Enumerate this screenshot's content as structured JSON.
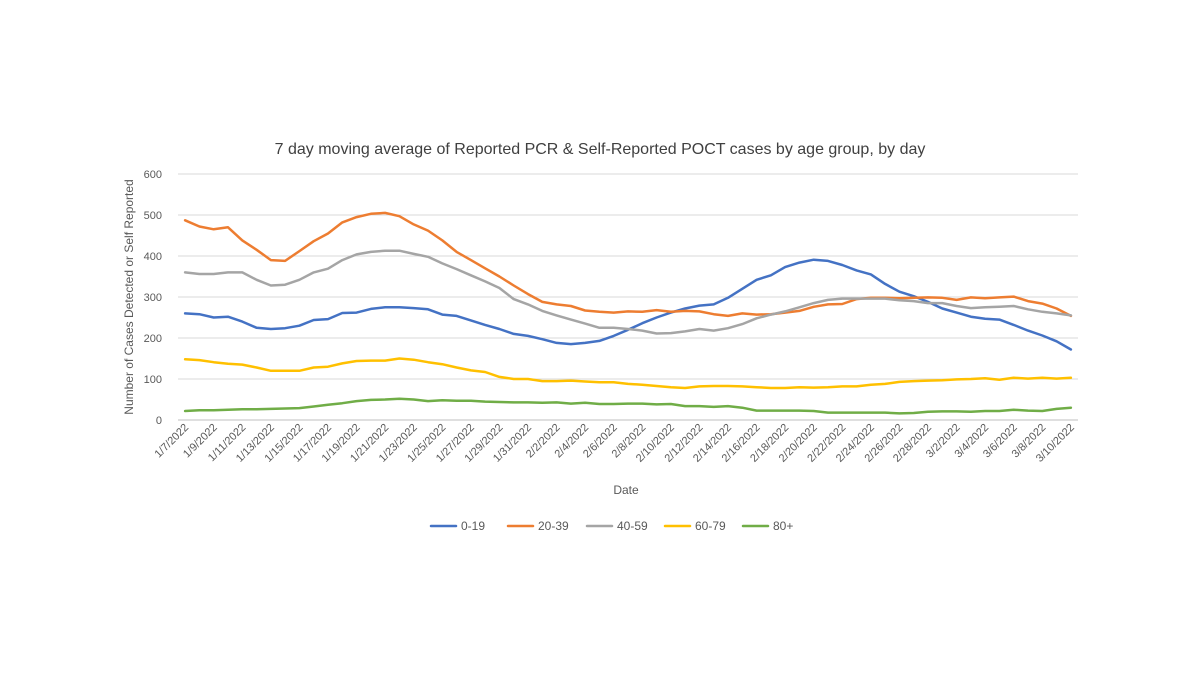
{
  "chart_data": {
    "type": "line",
    "title": "7 day moving average of Reported PCR & Self-Reported POCT cases by age group, by day",
    "xlabel": "Date",
    "ylabel": "Number of Cases Detected or Self Reported",
    "ylim": [
      0,
      600
    ],
    "yticks": [
      "0",
      "100",
      "200",
      "300",
      "400",
      "500",
      "600"
    ],
    "grid": true,
    "legend_position": "bottom",
    "x": [
      "1/7/2022",
      "1/8/2022",
      "1/9/2022",
      "1/10/2022",
      "1/11/2022",
      "1/12/2022",
      "1/13/2022",
      "1/14/2022",
      "1/15/2022",
      "1/16/2022",
      "1/17/2022",
      "1/18/2022",
      "1/19/2022",
      "1/20/2022",
      "1/21/2022",
      "1/22/2022",
      "1/23/2022",
      "1/24/2022",
      "1/25/2022",
      "1/26/2022",
      "1/27/2022",
      "1/28/2022",
      "1/29/2022",
      "1/30/2022",
      "1/31/2022",
      "2/1/2022",
      "2/2/2022",
      "2/3/2022",
      "2/4/2022",
      "2/5/2022",
      "2/6/2022",
      "2/7/2022",
      "2/8/2022",
      "2/9/2022",
      "2/10/2022",
      "2/11/2022",
      "2/12/2022",
      "2/13/2022",
      "2/14/2022",
      "2/15/2022",
      "2/16/2022",
      "2/17/2022",
      "2/18/2022",
      "2/19/2022",
      "2/20/2022",
      "2/21/2022",
      "2/22/2022",
      "2/23/2022",
      "2/24/2022",
      "2/25/2022",
      "2/26/2022",
      "2/27/2022",
      "2/28/2022",
      "3/1/2022",
      "3/2/2022",
      "3/3/2022",
      "3/4/2022",
      "3/5/2022",
      "3/6/2022",
      "3/7/2022",
      "3/8/2022",
      "3/9/2022",
      "3/10/2022"
    ],
    "xtick_labels": [
      "1/7/2022",
      "1/9/2022",
      "1/11/2022",
      "1/13/2022",
      "1/15/2022",
      "1/17/2022",
      "1/19/2022",
      "1/21/2022",
      "1/23/2022",
      "1/25/2022",
      "1/27/2022",
      "1/29/2022",
      "1/31/2022",
      "2/2/2022",
      "2/4/2022",
      "2/6/2022",
      "2/8/2022",
      "2/10/2022",
      "2/12/2022",
      "2/14/2022",
      "2/16/2022",
      "2/18/2022",
      "2/20/2022",
      "2/22/2022",
      "2/24/2022",
      "2/26/2022",
      "2/28/2022",
      "3/2/2022",
      "3/4/2022",
      "3/6/2022",
      "3/8/2022",
      "3/10/2022"
    ],
    "series": [
      {
        "name": "0-19",
        "color": "#4472C4",
        "values": [
          260,
          258,
          250,
          252,
          240,
          225,
          222,
          224,
          230,
          244,
          246,
          261,
          262,
          271,
          275,
          275,
          273,
          270,
          257,
          254,
          243,
          232,
          222,
          210,
          205,
          197,
          188,
          185,
          188,
          193,
          205,
          220,
          236,
          250,
          262,
          272,
          279,
          282,
          298,
          320,
          342,
          353,
          373,
          384,
          391,
          388,
          378,
          365,
          355,
          332,
          313,
          302,
          288,
          272,
          262,
          252,
          247,
          245,
          232,
          218,
          206,
          192,
          172
        ]
      },
      {
        "name": "20-39",
        "color": "#ED7D31",
        "values": [
          487,
          472,
          465,
          470,
          438,
          415,
          390,
          388,
          412,
          436,
          455,
          482,
          495,
          503,
          505,
          497,
          477,
          462,
          438,
          410,
          390,
          370,
          350,
          328,
          307,
          288,
          282,
          278,
          267,
          264,
          262,
          265,
          264,
          268,
          264,
          266,
          265,
          258,
          254,
          260,
          257,
          258,
          262,
          266,
          276,
          282,
          283,
          295,
          298,
          298,
          297,
          298,
          299,
          298,
          293,
          299,
          297,
          299,
          301,
          290,
          284,
          272,
          254
        ]
      },
      {
        "name": "40-59",
        "color": "#A5A5A5",
        "values": [
          360,
          356,
          356,
          360,
          360,
          342,
          328,
          330,
          342,
          360,
          369,
          390,
          404,
          410,
          413,
          413,
          405,
          398,
          382,
          368,
          353,
          338,
          322,
          295,
          282,
          266,
          255,
          245,
          235,
          225,
          225,
          222,
          218,
          211,
          212,
          216,
          222,
          218,
          224,
          234,
          248,
          257,
          265,
          275,
          285,
          293,
          296,
          296,
          296,
          296,
          292,
          290,
          285,
          285,
          278,
          273,
          275,
          276,
          278,
          270,
          264,
          260,
          255
        ]
      },
      {
        "name": "60-79",
        "color": "#FFC000",
        "values": [
          148,
          146,
          141,
          137,
          135,
          128,
          120,
          120,
          120,
          128,
          130,
          138,
          144,
          145,
          145,
          150,
          147,
          141,
          136,
          128,
          121,
          117,
          105,
          100,
          100,
          95,
          95,
          96,
          94,
          92,
          92,
          88,
          86,
          83,
          80,
          78,
          82,
          83,
          83,
          82,
          80,
          78,
          78,
          80,
          79,
          80,
          82,
          82,
          86,
          88,
          93,
          95,
          96,
          97,
          99,
          100,
          102,
          98,
          103,
          101,
          103,
          101,
          103
        ]
      },
      {
        "name": "80+",
        "color": "#70AD47",
        "values": [
          22,
          24,
          24,
          25,
          26,
          26,
          27,
          28,
          29,
          33,
          37,
          41,
          46,
          49,
          50,
          52,
          50,
          46,
          48,
          47,
          47,
          45,
          44,
          43,
          43,
          42,
          43,
          40,
          42,
          39,
          39,
          40,
          40,
          38,
          39,
          34,
          34,
          32,
          34,
          30,
          23,
          23,
          23,
          23,
          22,
          18,
          18,
          18,
          18,
          18,
          16,
          17,
          20,
          21,
          21,
          20,
          22,
          22,
          25,
          23,
          22,
          27,
          30
        ]
      }
    ]
  }
}
